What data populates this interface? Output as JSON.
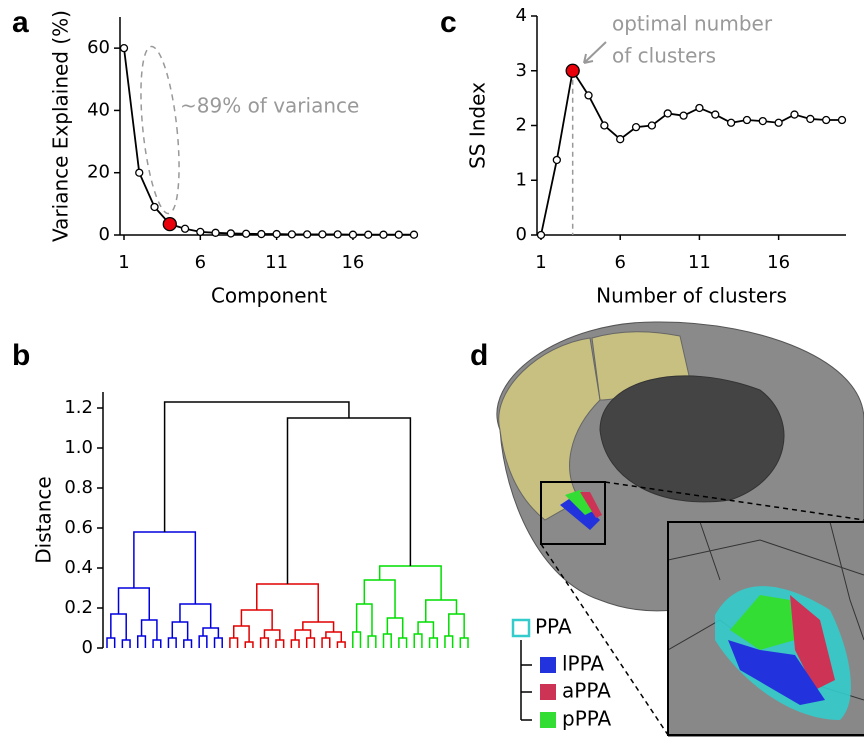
{
  "chart_data": [
    {
      "type": "line",
      "label": "a",
      "x": [
        1,
        2,
        3,
        4,
        5,
        6,
        7,
        8,
        9,
        10,
        11,
        12,
        13,
        14,
        15,
        16,
        17,
        18,
        19,
        20
      ],
      "values": [
        60,
        20,
        9,
        3.5,
        2,
        1,
        0.7,
        0.5,
        0.4,
        0.3,
        0.3,
        0.2,
        0.2,
        0.2,
        0.2,
        0.1,
        0.1,
        0.1,
        0.1,
        0.1
      ],
      "color": "#000000",
      "highlight_index": 3,
      "highlight_color": "#e8000b",
      "xlim": [
        1,
        20
      ],
      "ylim": [
        0,
        70
      ],
      "xticks": [
        1,
        6,
        11,
        16
      ],
      "yticks": [
        0,
        20,
        40,
        60
      ],
      "xlabel": "Component",
      "ylabel": "Variance Explained (%)",
      "annotation": "~89% of variance"
    },
    {
      "type": "line",
      "label": "c",
      "x": [
        1,
        2,
        3,
        4,
        5,
        6,
        7,
        8,
        9,
        10,
        11,
        12,
        13,
        14,
        15,
        16,
        17,
        18,
        19,
        20
      ],
      "values": [
        0,
        1.37,
        3.0,
        2.55,
        2.0,
        1.75,
        1.97,
        2.0,
        2.22,
        2.18,
        2.32,
        2.2,
        2.05,
        2.1,
        2.08,
        2.05,
        2.2,
        2.12,
        2.1,
        2.1
      ],
      "color": "#000000",
      "highlight_index": 2,
      "highlight_color": "#e8000b",
      "xlim": [
        1,
        20
      ],
      "ylim": [
        0,
        4
      ],
      "xticks": [
        1,
        6,
        11,
        16
      ],
      "yticks": [
        0,
        1,
        2,
        3,
        4
      ],
      "xlabel": "Number of clusters",
      "ylabel": "SS Index",
      "annotation": [
        "optimal number",
        "of clusters"
      ]
    },
    {
      "type": "dendrogram",
      "label": "b",
      "ylabel": "Distance",
      "ylim": [
        0,
        1.28
      ],
      "yticks": [
        0,
        0.2,
        0.4,
        0.6,
        0.8,
        {
          "value": 1,
          "label": "1.0"
        },
        1.2
      ],
      "color": "#000000",
      "tree": {
        "height": 1.23,
        "children": [
          {
            "height": 0.58,
            "color": "#0000dd",
            "children": [
              {
                "height": 0.3,
                "children": [
                  {
                    "height": 0.17,
                    "children": [
                      {
                        "height": 0.05
                      },
                      {
                        "height": 0.04
                      }
                    ]
                  },
                  {
                    "height": 0.14,
                    "children": [
                      {
                        "height": 0.06
                      },
                      {
                        "height": 0.04
                      }
                    ]
                  }
                ]
              },
              {
                "height": 0.22,
                "children": [
                  {
                    "height": 0.13,
                    "children": [
                      {
                        "height": 0.05
                      },
                      {
                        "height": 0.04
                      }
                    ]
                  },
                  {
                    "height": 0.1,
                    "children": [
                      {
                        "height": 0.06
                      },
                      {
                        "height": 0.05
                      }
                    ]
                  }
                ]
              }
            ]
          },
          {
            "height": 1.15,
            "children": [
              {
                "height": 0.32,
                "color": "#e00000",
                "children": [
                  {
                    "height": 0.19,
                    "children": [
                      {
                        "height": 0.11,
                        "children": [
                          {
                            "height": 0.05
                          },
                          {
                            "height": 0.03
                          }
                        ]
                      },
                      {
                        "height": 0.09,
                        "children": [
                          {
                            "height": 0.05
                          },
                          {
                            "height": 0.04
                          }
                        ]
                      }
                    ]
                  },
                  {
                    "height": 0.13,
                    "children": [
                      {
                        "height": 0.09,
                        "children": [
                          {
                            "height": 0.04
                          },
                          {
                            "height": 0.05
                          }
                        ]
                      },
                      {
                        "height": 0.08,
                        "children": [
                          {
                            "height": 0.05
                          },
                          {
                            "height": 0.03
                          }
                        ]
                      }
                    ]
                  }
                ]
              },
              {
                "height": 0.41,
                "color": "#00dd00",
                "children": [
                  {
                    "height": 0.34,
                    "children": [
                      {
                        "height": 0.22,
                        "children": [
                          {
                            "height": 0.08
                          },
                          {
                            "height": 0.06
                          }
                        ]
                      },
                      {
                        "height": 0.15,
                        "children": [
                          {
                            "height": 0.07
                          },
                          {
                            "height": 0.05
                          }
                        ]
                      }
                    ]
                  },
                  {
                    "height": 0.24,
                    "children": [
                      {
                        "height": 0.13,
                        "children": [
                          {
                            "height": 0.07
                          },
                          {
                            "height": 0.05
                          }
                        ]
                      },
                      {
                        "height": 0.17,
                        "children": [
                          {
                            "height": 0.06
                          },
                          {
                            "height": 0.05
                          }
                        ]
                      }
                    ]
                  }
                ]
              }
            ]
          }
        ]
      }
    },
    {
      "type": "image",
      "label": "d",
      "legend": [
        {
          "name": "PPA",
          "color": "#33cccc"
        },
        {
          "name": "lPPA",
          "color": "#2233dd"
        },
        {
          "name": "aPPA",
          "color": "#cc3355"
        },
        {
          "name": "pPPA",
          "color": "#33dd33"
        }
      ]
    }
  ]
}
